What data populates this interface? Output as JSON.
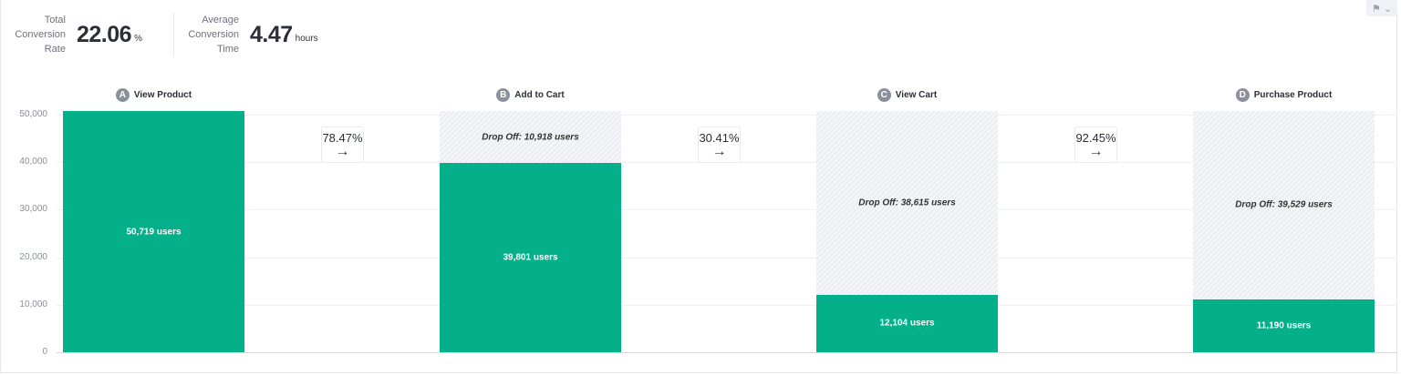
{
  "metrics": {
    "total_conversion": {
      "label": "Total Conversion Rate",
      "value": "22.06",
      "unit": "%"
    },
    "avg_conversion_time": {
      "label": "Average Conversion Time",
      "value": "4.47",
      "unit": "hours"
    }
  },
  "flag_icon": "flag-icon",
  "colors": {
    "bar": "#03b08a",
    "dropoff": "hatched-gray"
  },
  "chart_data": {
    "type": "bar",
    "ylim": [
      0,
      50000
    ],
    "yticks": [
      "0",
      "10,000",
      "20,000",
      "30,000",
      "40,000",
      "50,000"
    ],
    "ytick_values": [
      0,
      10000,
      20000,
      30000,
      40000,
      50000
    ],
    "grid": true,
    "steps": [
      {
        "badge": "A",
        "name": "View Product",
        "users": 50719,
        "users_label": "50,719 users",
        "dropoff": 0,
        "dropoff_label": ""
      },
      {
        "badge": "B",
        "name": "Add to Cart",
        "users": 39801,
        "users_label": "39,801 users",
        "dropoff": 10918,
        "dropoff_label": "Drop Off: 10,918 users"
      },
      {
        "badge": "C",
        "name": "View Cart",
        "users": 12104,
        "users_label": "12,104 users",
        "dropoff": 38615,
        "dropoff_label": "Drop Off: 38,615 users"
      },
      {
        "badge": "D",
        "name": "Purchase Product",
        "users": 11190,
        "users_label": "11,190 users",
        "dropoff": 39529,
        "dropoff_label": "Drop Off: 39,529 users"
      }
    ],
    "conversions": [
      "78.47%",
      "30.41%",
      "92.45%"
    ]
  }
}
